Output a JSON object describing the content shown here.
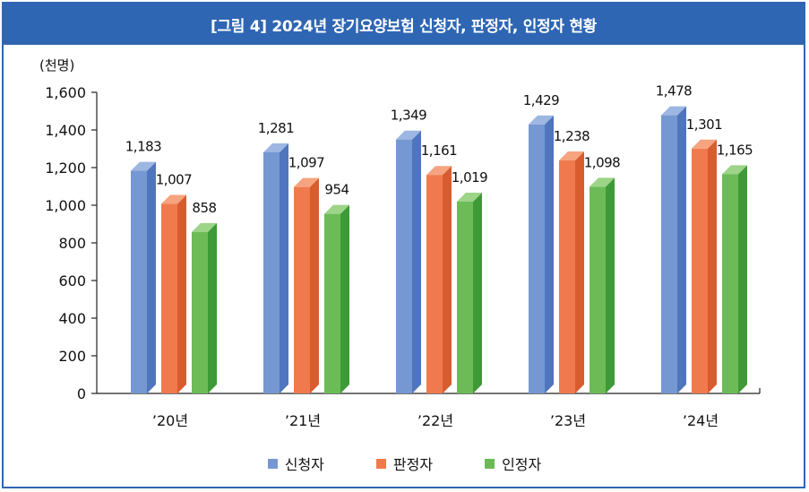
{
  "chart_data": {
    "type": "bar",
    "title": "[그림 4] 2024년 장기요양보험 신청자, 판정자, 인정자 현황",
    "unit_label": "(천명)",
    "categories": [
      "’20년",
      "’21년",
      "’22년",
      "’23년",
      "’24년"
    ],
    "series": [
      {
        "name": "신청자",
        "values": [
          1183,
          1281,
          1349,
          1429,
          1478
        ],
        "labels": [
          "1,183",
          "1,281",
          "1,349",
          "1,429",
          "1,478"
        ],
        "color": "#7698d2"
      },
      {
        "name": "판정자",
        "values": [
          1007,
          1097,
          1161,
          1238,
          1301
        ],
        "labels": [
          "1,007",
          "1,097",
          "1,161",
          "1,238",
          "1,301"
        ],
        "color": "#f07a4e"
      },
      {
        "name": "인정자",
        "values": [
          858,
          954,
          1019,
          1098,
          1165
        ],
        "labels": [
          "858",
          "954",
          "1,019",
          "1,098",
          "1,165"
        ],
        "color": "#6cbb57"
      }
    ],
    "ylim": [
      0,
      1600
    ],
    "yticks": [
      "0",
      "200",
      "400",
      "600",
      "800",
      "1,000",
      "1,200",
      "1,400",
      "1,600"
    ],
    "legend_position": "bottom"
  },
  "colors": {
    "header": "#2f66b3",
    "series_side": [
      "#4f76bd",
      "#d85c2e",
      "#3e9a36"
    ],
    "series_top": [
      "#9db6e2",
      "#f6a380",
      "#9dd488"
    ]
  }
}
